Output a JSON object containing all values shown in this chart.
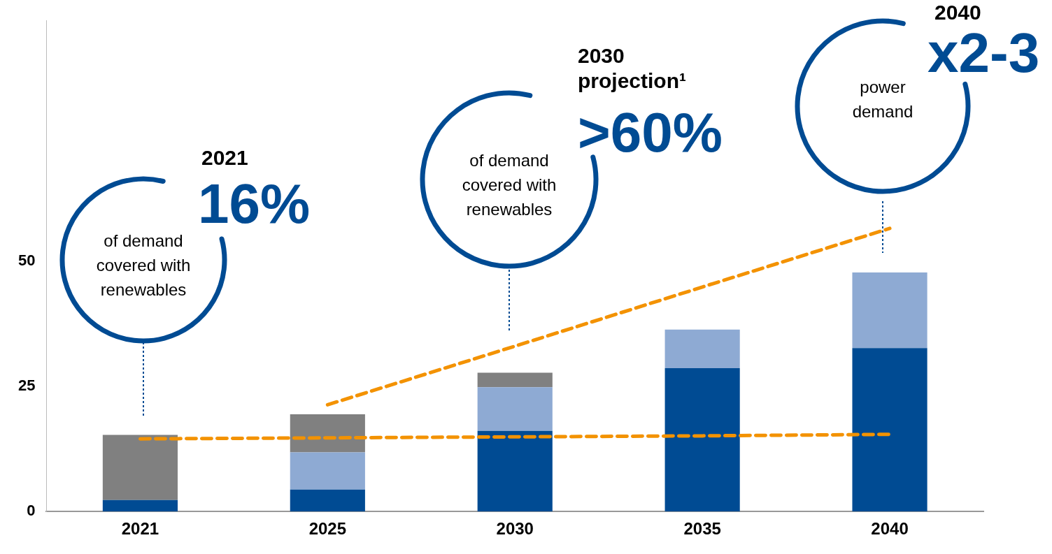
{
  "chart_data": {
    "type": "bar",
    "stacked": true,
    "categories": [
      "2021",
      "2025",
      "2030",
      "2035",
      "2040"
    ],
    "series": [
      {
        "color": "#004b93",
        "values": [
          2.3,
          4.4,
          16.1,
          28.6,
          32.6
        ]
      },
      {
        "color": "#8eaad3",
        "values": [
          null,
          7.4,
          8.7,
          7.7,
          15.1
        ]
      },
      {
        "color": "#808080",
        "values": [
          13,
          7.6,
          2.9,
          null,
          null
        ]
      },
      {
        "type": "line",
        "color": "#f39200",
        "line_style": "dashed",
        "marker": "none",
        "values": [
          14.5,
          14.7,
          14.9,
          15.1,
          15.4
        ]
      },
      {
        "type": "line",
        "color": "#f39200",
        "line_style": "dashed",
        "marker": "none",
        "values": [
          null,
          21.3,
          33.0,
          44.8,
          56.5
        ]
      }
    ],
    "ylim": [
      0,
      98
    ],
    "yticks": [
      0,
      25,
      50
    ],
    "grid": false,
    "legend": false,
    "annotations": [
      "2021",
      "16%",
      "of demand covered with renewables",
      "2030 projection¹",
      ">60%",
      "of demand covered with renewables",
      "2040",
      "x2-3",
      "power demand"
    ]
  }
}
